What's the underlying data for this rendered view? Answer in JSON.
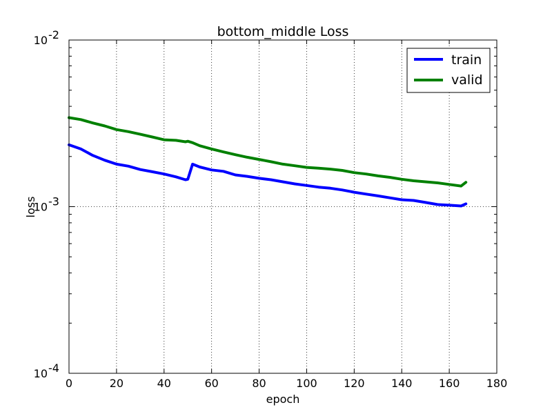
{
  "chart_data": {
    "type": "line",
    "title": "bottom_middle Loss",
    "xlabel": "epoch",
    "ylabel": "loss",
    "xlim": [
      0,
      180
    ],
    "ylim": [
      0.0001,
      0.01
    ],
    "yscale": "log",
    "grid": true,
    "legend_position": "top-right",
    "x_ticks": [
      "0",
      "20",
      "40",
      "60",
      "80",
      "100",
      "120",
      "140",
      "160",
      "180"
    ],
    "y_ticks": [
      {
        "base": "10",
        "exp": "-4"
      },
      {
        "base": "10",
        "exp": "-3"
      },
      {
        "base": "10",
        "exp": "-2"
      }
    ],
    "x": [
      0,
      5,
      10,
      15,
      20,
      25,
      30,
      35,
      40,
      45,
      49,
      50,
      52,
      55,
      60,
      65,
      70,
      75,
      80,
      85,
      90,
      95,
      100,
      105,
      110,
      115,
      120,
      125,
      130,
      135,
      140,
      145,
      150,
      155,
      160,
      165,
      167
    ],
    "series": [
      {
        "name": "train",
        "color": "#0000ff",
        "values": [
          0.00235,
          0.00222,
          0.00203,
          0.0019,
          0.0018,
          0.00175,
          0.00167,
          0.00162,
          0.00157,
          0.00151,
          0.00145,
          0.00146,
          0.0018,
          0.00173,
          0.00166,
          0.00163,
          0.00155,
          0.00152,
          0.00148,
          0.00145,
          0.00141,
          0.00137,
          0.00134,
          0.00131,
          0.00129,
          0.00126,
          0.00122,
          0.00119,
          0.00116,
          0.00113,
          0.0011,
          0.00109,
          0.00106,
          0.00103,
          0.00102,
          0.00101,
          0.00104
        ]
      },
      {
        "name": "valid",
        "color": "#008000",
        "values": [
          0.00342,
          0.00333,
          0.00318,
          0.00305,
          0.0029,
          0.00282,
          0.00272,
          0.00262,
          0.00252,
          0.0025,
          0.00245,
          0.00247,
          0.00242,
          0.00232,
          0.00222,
          0.00213,
          0.00205,
          0.00198,
          0.00192,
          0.00186,
          0.0018,
          0.00176,
          0.00172,
          0.0017,
          0.00168,
          0.00165,
          0.0016,
          0.00157,
          0.00153,
          0.0015,
          0.00146,
          0.00143,
          0.00141,
          0.00139,
          0.00136,
          0.00133,
          0.0014
        ]
      }
    ]
  }
}
